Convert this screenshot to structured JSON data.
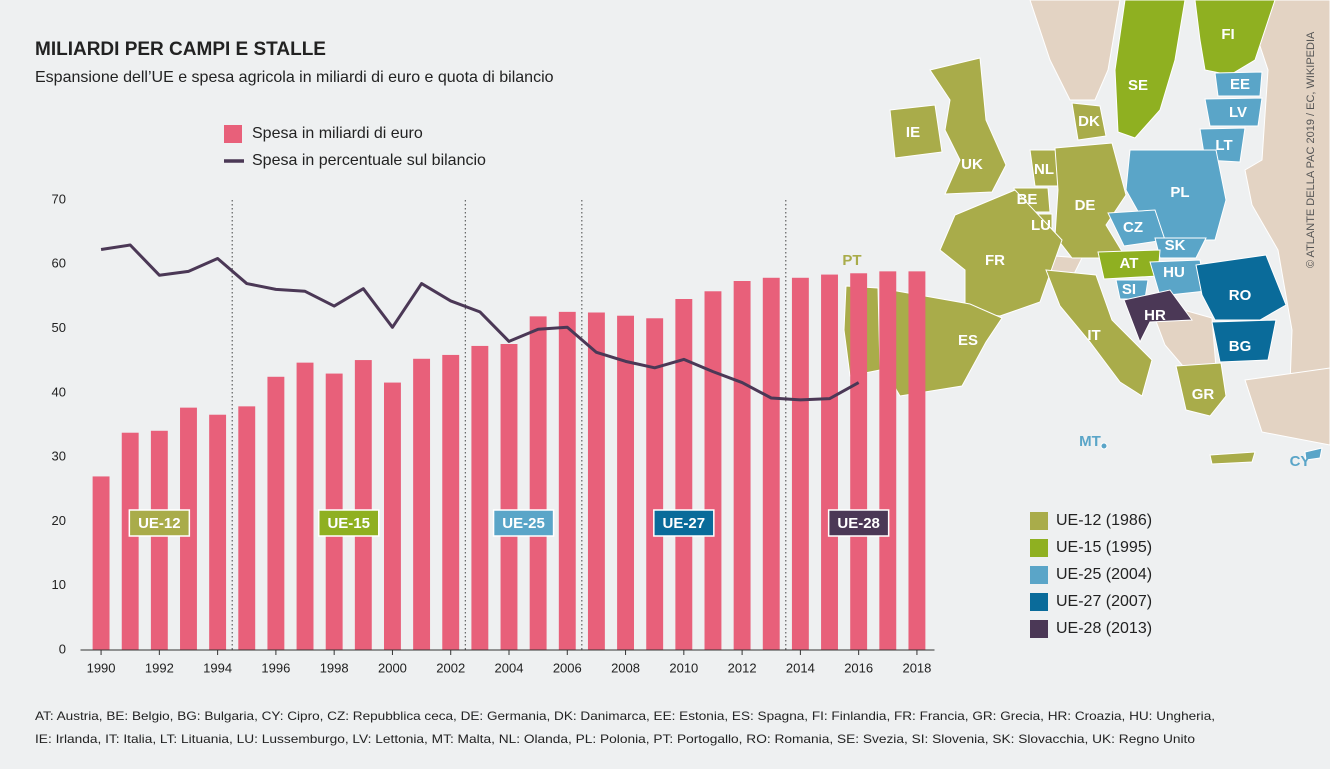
{
  "chart_data": {
    "type": "bar",
    "title": "MILIARDI PER CAMPI E STALLE",
    "subtitle": "Espansione dell’UE e spesa agricola in miliardi di euro e quota di bilancio",
    "x": [
      1990,
      1991,
      1992,
      1993,
      1994,
      1995,
      1996,
      1997,
      1998,
      1999,
      2000,
      2001,
      2002,
      2003,
      2004,
      2005,
      2006,
      2007,
      2008,
      2009,
      2010,
      2011,
      2012,
      2013,
      2014,
      2015,
      2016,
      2017,
      2018
    ],
    "series": [
      {
        "name": "Spesa in miliardi di euro",
        "type": "bar",
        "color": "#e8607a",
        "values": [
          27,
          33.8,
          34.1,
          37.7,
          36.6,
          37.9,
          42.5,
          44.7,
          43,
          45.1,
          41.6,
          45.3,
          45.9,
          47.3,
          47.6,
          51.9,
          52.6,
          52.5,
          52,
          51.6,
          54.6,
          55.8,
          57.4,
          57.9,
          57.9,
          58.4,
          58.6,
          58.9,
          58.9
        ]
      },
      {
        "name": "Spesa in percentuale sul bilancio",
        "type": "line",
        "color": "#4b3856",
        "values": [
          62.3,
          63,
          58.3,
          58.9,
          60.9,
          57,
          56.1,
          55.8,
          53.5,
          56.2,
          50.2,
          57,
          54.3,
          52.6,
          48,
          49.9,
          50.2,
          46.3,
          44.9,
          43.9,
          45.2,
          43.3,
          41.6,
          39.2,
          38.9,
          39.1,
          41.6,
          null,
          null
        ]
      }
    ],
    "xlim": [
      1989.5,
      2018.5
    ],
    "xticks": [
      1990,
      1992,
      1994,
      1996,
      1998,
      2000,
      2002,
      2004,
      2006,
      2008,
      2010,
      2012,
      2014,
      2016,
      2018
    ],
    "ylim": [
      0,
      70
    ],
    "yticks": [
      0,
      10,
      20,
      30,
      40,
      50,
      60,
      70
    ],
    "dividers": [
      1994.5,
      2002.5,
      2006.5,
      2013.5
    ],
    "eras": [
      {
        "label": "UE-12",
        "color": "#a9ac4a"
      },
      {
        "label": "UE-15",
        "color": "#8fb021"
      },
      {
        "label": "UE-25",
        "color": "#5aa5c8"
      },
      {
        "label": "UE-27",
        "color": "#0a6b9a"
      },
      {
        "label": "UE-28",
        "color": "#4b3856"
      }
    ]
  },
  "map": {
    "countries": [
      "FI",
      "SE",
      "EE",
      "LV",
      "LT",
      "DK",
      "IE",
      "UK",
      "NL",
      "BE",
      "DE",
      "LU",
      "PL",
      "CZ",
      "SK",
      "AT",
      "HU",
      "SI",
      "FR",
      "HR",
      "RO",
      "BG",
      "IT",
      "ES",
      "PT",
      "GR",
      "MT",
      "CY"
    ],
    "legend": [
      {
        "label": "UE-12 (1986)",
        "color": "#a9ac4a"
      },
      {
        "label": "UE-15 (1995)",
        "color": "#8fb021"
      },
      {
        "label": "UE-25 (2004)",
        "color": "#5aa5c8"
      },
      {
        "label": "UE-27 (2007)",
        "color": "#0a6b9a"
      },
      {
        "label": "UE-28 (2013)",
        "color": "#4b3856"
      }
    ]
  },
  "source": "© ATLANTE DELLA PAC 2019 / EC, WIKIPEDIA",
  "footnote": [
    "AT: Austria, BE: Belgio, BG: Bulgaria, CY: Cipro, CZ: Repubblica ceca, DE: Germania, DK: Danimarca, EE: Estonia, ES: Spagna, FI: Finlandia, FR: Francia, GR: Grecia, HR: Croazia, HU: Ungheria,",
    "IE: Irlanda, IT: Italia, LT: Lituania, LU: Lussemburgo, LV: Lettonia, MT: Malta, NL: Olanda, PL: Polonia, PT: Portogallo, RO: Romania, SE: Svezia, SI: Slovenia, SK: Slovacchia, UK: Regno Unito"
  ]
}
